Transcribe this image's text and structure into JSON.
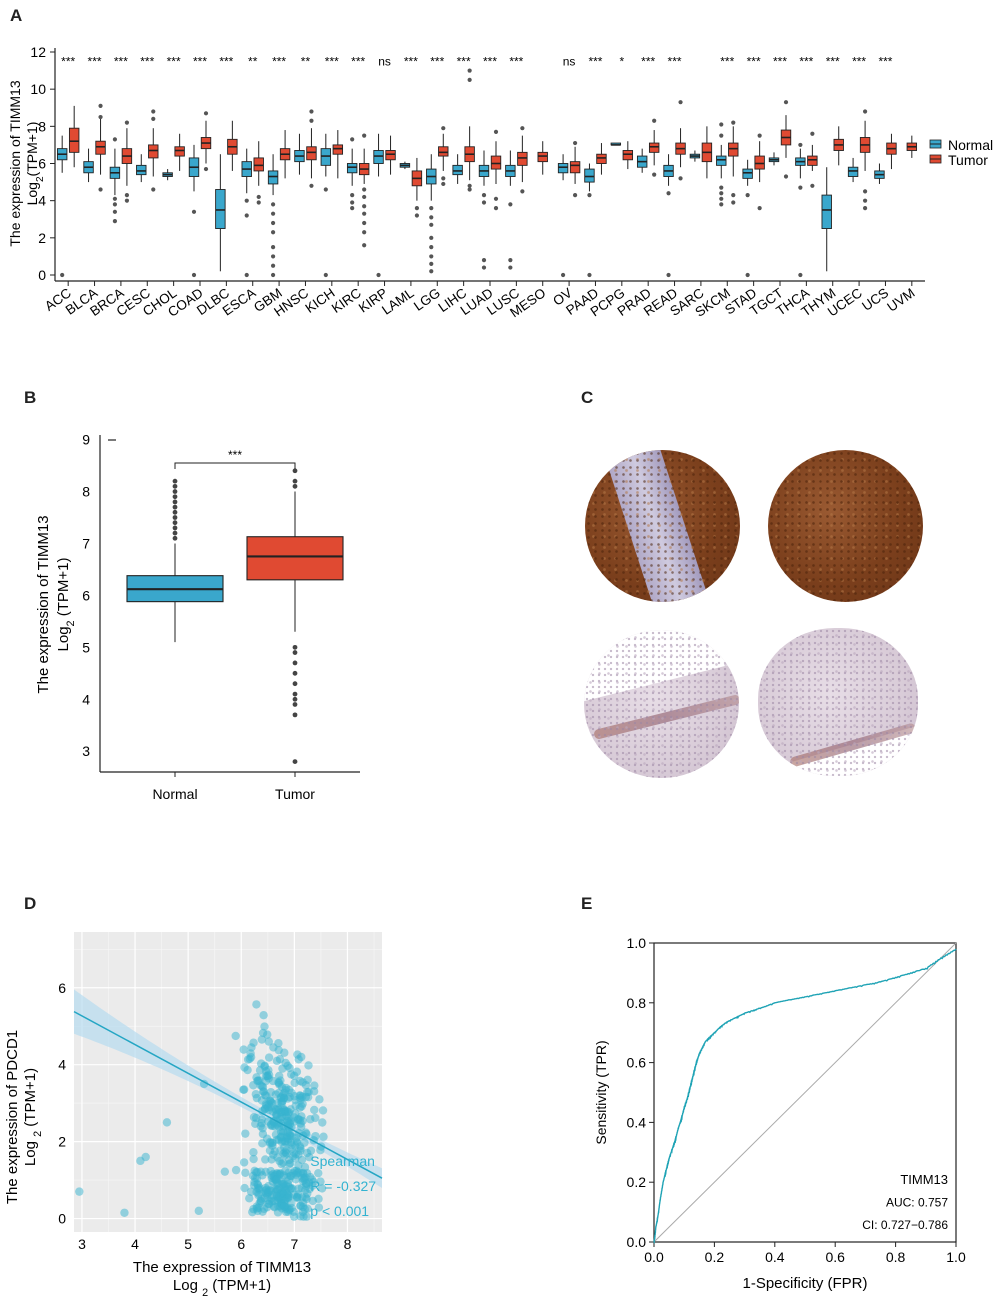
{
  "panels": {
    "a": "A",
    "b": "B",
    "c": "C",
    "d": "D",
    "e": "E"
  },
  "chart_data": [
    {
      "id": "A",
      "type": "box",
      "title": "",
      "ylabel_line1": "The expression of TIMM13",
      "ylabel_line2_pre": "Log",
      "ylabel_line2_sub": "2",
      "ylabel_line2_post": "(TPM+1)",
      "ylim": [
        0,
        12
      ],
      "yticks": [
        0,
        2,
        4,
        6,
        8,
        10,
        12
      ],
      "legend": {
        "position": "right",
        "entries": [
          "Normal",
          "Tumor"
        ]
      },
      "colors": {
        "normal": "#3aa7cc",
        "tumor": "#e04a32"
      },
      "categories": [
        "ACC",
        "BLCA",
        "BRCA",
        "CESC",
        "CHOL",
        "COAD",
        "DLBC",
        "ESCA",
        "GBM",
        "HNSC",
        "KICH",
        "KIRC",
        "KIRP",
        "LAML",
        "LGG",
        "LIHC",
        "LUAD",
        "LUSC",
        "MESO",
        "OV",
        "PAAD",
        "PCPG",
        "PRAD",
        "READ",
        "SARC",
        "SKCM",
        "STAD",
        "TGCT",
        "THCA",
        "THYM",
        "UCEC",
        "UCS",
        "UVM"
      ],
      "significance": [
        "***",
        "***",
        "***",
        "***",
        "***",
        "***",
        "***",
        "**",
        "***",
        "**",
        "***",
        "***",
        "ns",
        "***",
        "***",
        "***",
        "***",
        "***",
        "",
        "ns",
        "***",
        "*",
        "***",
        "***",
        "",
        "***",
        "***",
        "***",
        "***",
        "***",
        "***",
        "***",
        ""
      ],
      "normal": [
        [
          5.5,
          6.2,
          6.5,
          6.8,
          7.5
        ],
        [
          5.0,
          5.5,
          5.8,
          6.1,
          6.8
        ],
        [
          4.3,
          5.2,
          5.5,
          5.8,
          6.8
        ],
        [
          5.0,
          5.4,
          5.6,
          5.9,
          6.5
        ],
        [
          5.1,
          5.3,
          5.4,
          5.5,
          5.7
        ],
        [
          4.5,
          5.3,
          5.8,
          6.3,
          7.0
        ],
        [
          0.2,
          2.5,
          3.5,
          4.6,
          6.5
        ],
        [
          4.4,
          5.3,
          5.7,
          6.1,
          6.8
        ],
        [
          4.3,
          4.9,
          5.3,
          5.6,
          6.5
        ],
        [
          5.4,
          6.1,
          6.4,
          6.7,
          7.6
        ],
        [
          5.3,
          5.9,
          6.4,
          6.8,
          7.6
        ],
        [
          4.8,
          5.5,
          5.8,
          6.0,
          6.8
        ],
        [
          5.3,
          6.0,
          6.4,
          6.7,
          7.6
        ],
        [
          5.7,
          5.8,
          5.9,
          6.0,
          6.1
        ],
        [
          4.0,
          4.9,
          5.3,
          5.7,
          6.5
        ],
        [
          4.9,
          5.4,
          5.6,
          5.9,
          6.5
        ],
        [
          4.8,
          5.3,
          5.6,
          5.9,
          6.7
        ],
        [
          4.8,
          5.3,
          5.6,
          5.9,
          6.7
        ],
        null,
        [
          5.1,
          5.5,
          5.8,
          6.0,
          6.5
        ],
        [
          4.5,
          5.0,
          5.3,
          5.7,
          6.0
        ],
        [
          7.0,
          7.0,
          7.0,
          7.1,
          7.1
        ],
        [
          5.5,
          5.8,
          6.1,
          6.4,
          6.8
        ],
        [
          4.8,
          5.3,
          5.6,
          5.9,
          6.5
        ],
        [
          6.1,
          6.3,
          6.4,
          6.5,
          6.7
        ],
        [
          5.2,
          5.9,
          6.2,
          6.4,
          7.0
        ],
        [
          4.8,
          5.2,
          5.5,
          5.7,
          6.2
        ],
        [
          5.9,
          6.1,
          6.2,
          6.3,
          6.6
        ],
        [
          5.2,
          5.9,
          6.1,
          6.3,
          6.8
        ],
        [
          0.2,
          2.5,
          3.5,
          4.3,
          5.8
        ],
        [
          5.0,
          5.3,
          5.6,
          5.8,
          6.3
        ],
        [
          4.9,
          5.2,
          5.4,
          5.6,
          6.0
        ],
        null
      ],
      "tumor": [
        [
          5.8,
          6.6,
          7.2,
          7.9,
          9.1
        ],
        [
          5.4,
          6.5,
          6.9,
          7.2,
          8.4
        ],
        [
          4.8,
          6.0,
          6.4,
          6.8,
          7.9
        ],
        [
          5.3,
          6.3,
          6.7,
          7.0,
          7.9
        ],
        [
          5.6,
          6.4,
          6.7,
          6.9,
          7.6
        ],
        [
          6.0,
          6.8,
          7.1,
          7.4,
          8.3
        ],
        [
          5.6,
          6.5,
          6.9,
          7.3,
          8.3
        ],
        [
          4.8,
          5.6,
          5.9,
          6.3,
          7.2
        ],
        [
          5.2,
          6.2,
          6.5,
          6.8,
          7.8
        ],
        [
          5.2,
          6.2,
          6.6,
          6.9,
          7.9
        ],
        [
          5.2,
          6.5,
          6.8,
          7.0,
          7.8
        ],
        [
          4.9,
          5.4,
          5.7,
          6.0,
          6.8
        ],
        [
          5.4,
          6.2,
          6.5,
          6.7,
          7.5
        ],
        [
          4.0,
          4.8,
          5.2,
          5.6,
          6.3
        ],
        [
          5.6,
          6.4,
          6.6,
          6.9,
          7.6
        ],
        [
          5.1,
          6.1,
          6.5,
          6.9,
          8.0
        ],
        [
          4.9,
          5.7,
          6.0,
          6.4,
          7.2
        ],
        [
          5.0,
          5.9,
          6.3,
          6.6,
          7.5
        ],
        [
          5.4,
          6.1,
          6.4,
          6.6,
          7.2
        ],
        [
          4.9,
          5.5,
          5.9,
          6.1,
          6.9
        ],
        [
          5.4,
          6.0,
          6.3,
          6.5,
          7.1
        ],
        [
          5.7,
          6.2,
          6.5,
          6.7,
          7.2
        ],
        [
          5.9,
          6.6,
          6.9,
          7.1,
          7.8
        ],
        [
          5.8,
          6.5,
          6.8,
          7.1,
          7.9
        ],
        [
          5.2,
          6.1,
          6.6,
          7.1,
          8.0
        ],
        [
          5.3,
          6.4,
          6.8,
          7.1,
          8.0
        ],
        [
          5.0,
          5.7,
          6.0,
          6.4,
          7.2
        ],
        [
          6.3,
          7.0,
          7.4,
          7.8,
          8.6
        ],
        [
          5.6,
          5.9,
          6.2,
          6.4,
          7.0
        ],
        [
          5.9,
          6.7,
          7.0,
          7.3,
          8.0
        ],
        [
          5.6,
          6.6,
          7.0,
          7.4,
          8.3
        ],
        [
          5.7,
          6.5,
          6.8,
          7.1,
          7.6
        ],
        [
          6.3,
          6.7,
          6.9,
          7.1,
          7.5
        ]
      ],
      "outliers": [
        {
          "cat": 0,
          "group": "normal",
          "values": [
            0
          ]
        },
        {
          "cat": 1,
          "group": "tumor",
          "values": [
            9.1,
            8.5,
            4.6
          ]
        },
        {
          "cat": 2,
          "group": "normal",
          "values": [
            3.8,
            3.4,
            2.9,
            4.1,
            7.3
          ]
        },
        {
          "cat": 2,
          "group": "tumor",
          "values": [
            4.3,
            4.0,
            8.2
          ]
        },
        {
          "cat": 3,
          "group": "tumor",
          "values": [
            8.4,
            8.8,
            4.6
          ]
        },
        {
          "cat": 5,
          "group": "normal",
          "values": [
            0,
            3.4
          ]
        },
        {
          "cat": 5,
          "group": "tumor",
          "values": [
            8.7,
            5.7
          ]
        },
        {
          "cat": 7,
          "group": "normal",
          "values": [
            0,
            3.2,
            4.0
          ]
        },
        {
          "cat": 7,
          "group": "tumor",
          "values": [
            3.9,
            4.2
          ]
        },
        {
          "cat": 8,
          "group": "normal",
          "values": [
            0,
            0.5,
            1.0,
            1.5,
            2.3,
            2.8,
            3.3,
            3.8
          ]
        },
        {
          "cat": 9,
          "group": "tumor",
          "values": [
            8.3,
            8.8,
            4.8
          ]
        },
        {
          "cat": 10,
          "group": "normal",
          "values": [
            0,
            4.6
          ]
        },
        {
          "cat": 11,
          "group": "normal",
          "values": [
            3.6,
            3.9,
            4.3,
            7.3
          ]
        },
        {
          "cat": 11,
          "group": "tumor",
          "values": [
            1.6,
            2.3,
            2.8,
            3.3,
            3.7,
            4.2,
            4.6,
            7.5
          ]
        },
        {
          "cat": 12,
          "group": "normal",
          "values": [
            0
          ]
        },
        {
          "cat": 13,
          "group": "tumor",
          "values": [
            3.6,
            3.2
          ]
        },
        {
          "cat": 14,
          "group": "normal",
          "values": [
            0.2,
            0.6,
            1.0,
            1.5,
            2.0,
            2.7,
            3.1,
            3.6
          ]
        },
        {
          "cat": 14,
          "group": "tumor",
          "values": [
            4.9,
            5.2,
            7.9
          ]
        },
        {
          "cat": 15,
          "group": "tumor",
          "values": [
            11.0,
            10.5,
            4.6,
            4.8
          ]
        },
        {
          "cat": 16,
          "group": "normal",
          "values": [
            0.4,
            0.8,
            3.9,
            4.3
          ]
        },
        {
          "cat": 16,
          "group": "tumor",
          "values": [
            3.6,
            4.1,
            7.7
          ]
        },
        {
          "cat": 17,
          "group": "normal",
          "values": [
            0.4,
            0.8,
            3.8
          ]
        },
        {
          "cat": 17,
          "group": "tumor",
          "values": [
            4.5,
            7.9
          ]
        },
        {
          "cat": 19,
          "group": "normal",
          "values": [
            0
          ]
        },
        {
          "cat": 19,
          "group": "tumor",
          "values": [
            4.3,
            7.1
          ]
        },
        {
          "cat": 20,
          "group": "normal",
          "values": [
            0,
            4.3
          ]
        },
        {
          "cat": 22,
          "group": "tumor",
          "values": [
            8.3,
            5.4
          ]
        },
        {
          "cat": 23,
          "group": "normal",
          "values": [
            0,
            4.4
          ]
        },
        {
          "cat": 23,
          "group": "tumor",
          "values": [
            9.3,
            5.2
          ]
        },
        {
          "cat": 25,
          "group": "normal",
          "values": [
            3.8,
            4.1,
            4.4,
            4.7,
            7.5,
            8.1
          ]
        },
        {
          "cat": 25,
          "group": "tumor",
          "values": [
            3.9,
            4.3,
            8.2
          ]
        },
        {
          "cat": 26,
          "group": "normal",
          "values": [
            0,
            4.3
          ]
        },
        {
          "cat": 26,
          "group": "tumor",
          "values": [
            3.6,
            7.5
          ]
        },
        {
          "cat": 27,
          "group": "tumor",
          "values": [
            5.3,
            9.3
          ]
        },
        {
          "cat": 28,
          "group": "normal",
          "values": [
            0,
            4.7,
            7.0
          ]
        },
        {
          "cat": 28,
          "group": "tumor",
          "values": [
            4.8,
            7.6
          ]
        },
        {
          "cat": 30,
          "group": "tumor",
          "values": [
            3.6,
            4.0,
            4.5,
            8.8
          ]
        }
      ]
    },
    {
      "id": "B",
      "type": "box",
      "ylabel_line1": "The expression of TIMM13",
      "ylabel_line2_pre": "Log",
      "ylabel_line2_sub": "2",
      "ylabel_line2_post": " (TPM+1)",
      "ylim": [
        2.6,
        9.05
      ],
      "yticks": [
        3,
        4,
        5,
        6,
        7,
        8,
        9
      ],
      "categories": [
        "Normal",
        "Tumor"
      ],
      "boxes": [
        [
          5.1,
          5.88,
          6.12,
          6.38,
          7.0
        ],
        [
          5.3,
          6.3,
          6.75,
          7.13,
          8.0
        ]
      ],
      "outliers": [
        {
          "cat": 0,
          "values": [
            7.1,
            7.2,
            7.3,
            7.4,
            7.5,
            7.6,
            7.7,
            7.8,
            7.9,
            8.0,
            8.1,
            8.2
          ]
        },
        {
          "cat": 1,
          "values": [
            8.1,
            8.2,
            8.4,
            5.0,
            4.9,
            4.7,
            4.5,
            4.3,
            4.1,
            4.0,
            3.9,
            3.7,
            2.8
          ]
        }
      ],
      "bracket_label": "***",
      "colors": {
        "normal": "#3aa7cc",
        "tumor": "#e04a32"
      }
    },
    {
      "id": "D",
      "type": "scatter",
      "xlabel_line1": "The expression  of TIMM13",
      "xlabel_line2_pre": "Log ",
      "xlabel_line2_sub": "2",
      "xlabel_line2_post": " (TPM+1)",
      "ylabel_line1": "The expression  of PDCD1",
      "ylabel_line2_pre": "Log ",
      "ylabel_line2_sub": "2",
      "ylabel_line2_post": " (TPM+1)",
      "xlim": [
        2.85,
        8.65
      ],
      "ylim": [
        -0.35,
        7.45
      ],
      "xticks": [
        3,
        4,
        5,
        6,
        7,
        8
      ],
      "yticks": [
        0,
        2,
        4,
        6
      ],
      "regression": {
        "x": [
          2.85,
          8.65
        ],
        "y": [
          5.38,
          1.05
        ]
      },
      "annotation": [
        "Spearman",
        "R = -0.327",
        "p < 0.001"
      ],
      "color": "#38b3cf",
      "n_points": 480
    },
    {
      "id": "E",
      "type": "line",
      "xlabel": "1-Specificity (FPR)",
      "ylabel": "Sensitivity (TPR)",
      "xlim": [
        0,
        1
      ],
      "ylim": [
        0,
        1
      ],
      "xticks": [
        "0.0",
        "0.2",
        "0.4",
        "0.6",
        "0.8",
        "1.0"
      ],
      "yticks": [
        "0.0",
        "0.2",
        "0.4",
        "0.6",
        "0.8",
        "1.0"
      ],
      "roc": {
        "x": [
          0,
          0.003,
          0.006,
          0.01,
          0.015,
          0.02,
          0.03,
          0.04,
          0.05,
          0.06,
          0.07,
          0.08,
          0.09,
          0.1,
          0.11,
          0.12,
          0.13,
          0.14,
          0.15,
          0.16,
          0.17,
          0.18,
          0.19,
          0.2,
          0.22,
          0.24,
          0.26,
          0.28,
          0.3,
          0.33,
          0.36,
          0.4,
          0.45,
          0.5,
          0.55,
          0.6,
          0.65,
          0.7,
          0.75,
          0.8,
          0.85,
          0.9,
          0.95,
          1.0
        ],
        "y": [
          0,
          0.02,
          0.05,
          0.07,
          0.1,
          0.14,
          0.2,
          0.24,
          0.28,
          0.31,
          0.34,
          0.38,
          0.41,
          0.45,
          0.48,
          0.52,
          0.56,
          0.6,
          0.63,
          0.65,
          0.67,
          0.68,
          0.69,
          0.7,
          0.72,
          0.735,
          0.745,
          0.755,
          0.765,
          0.775,
          0.785,
          0.8,
          0.81,
          0.82,
          0.83,
          0.84,
          0.85,
          0.86,
          0.87,
          0.885,
          0.9,
          0.915,
          0.95,
          0.98
        ]
      },
      "diagonal": {
        "x": [
          0,
          1
        ],
        "y": [
          0,
          1
        ]
      },
      "legend": [
        "TIMM13",
        "AUC: 0.757",
        "CI: 0.727−0.786"
      ],
      "colors": {
        "roc": "#1fa3b5",
        "diag": "#aaaaaa"
      }
    }
  ]
}
